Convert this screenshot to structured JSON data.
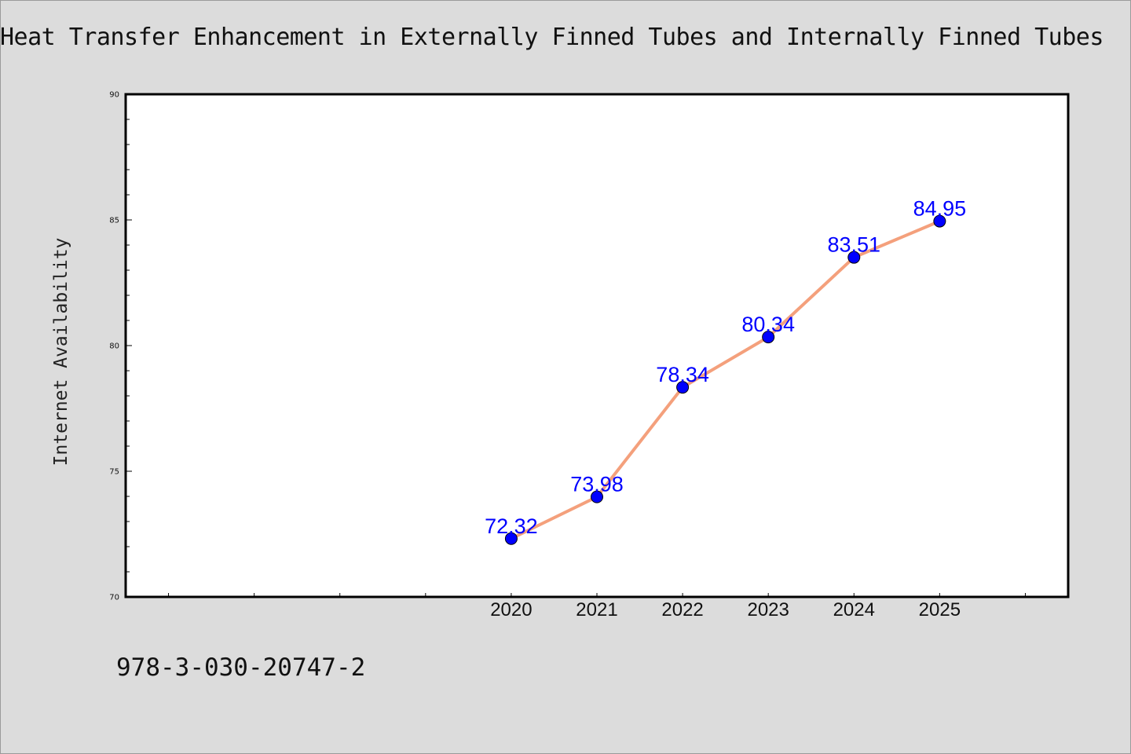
{
  "header": {
    "title": "Heat Transfer Enhancement in Externally Finned Tubes and Internally Finned Tubes"
  },
  "footer": {
    "isbn": "978-3-030-20747-2"
  },
  "chart_data": {
    "type": "line",
    "title": "Heat Transfer Enhancement in Externally Finned Tubes and Internally Finned Tubes",
    "xlabel": "",
    "ylabel": "Internet Availability",
    "x": [
      2020,
      2021,
      2022,
      2023,
      2024,
      2025
    ],
    "x_tick_labels": [
      "2020",
      "2021",
      "2022",
      "2023",
      "2024",
      "2025"
    ],
    "xlim": [
      2015.5,
      2026.5
    ],
    "ylim": [
      70,
      90
    ],
    "y_ticks": [
      70,
      75,
      80,
      85,
      90
    ],
    "y_tick_labels": [
      "70",
      "75",
      "80",
      "85",
      "90"
    ],
    "series": [
      {
        "values": [
          72.32,
          73.98,
          78.34,
          80.34,
          83.51,
          84.95
        ],
        "data_labels": [
          "72.32",
          "73.98",
          "78.34",
          "80.34",
          "83.51",
          "84.95"
        ]
      }
    ],
    "grid": false,
    "legend": "none",
    "colors": {
      "line": "#f4a07c",
      "marker": "#0000ff",
      "data_label": "#0000ff",
      "background": "#dcdcdc",
      "plot_area": "#ffffff"
    }
  }
}
